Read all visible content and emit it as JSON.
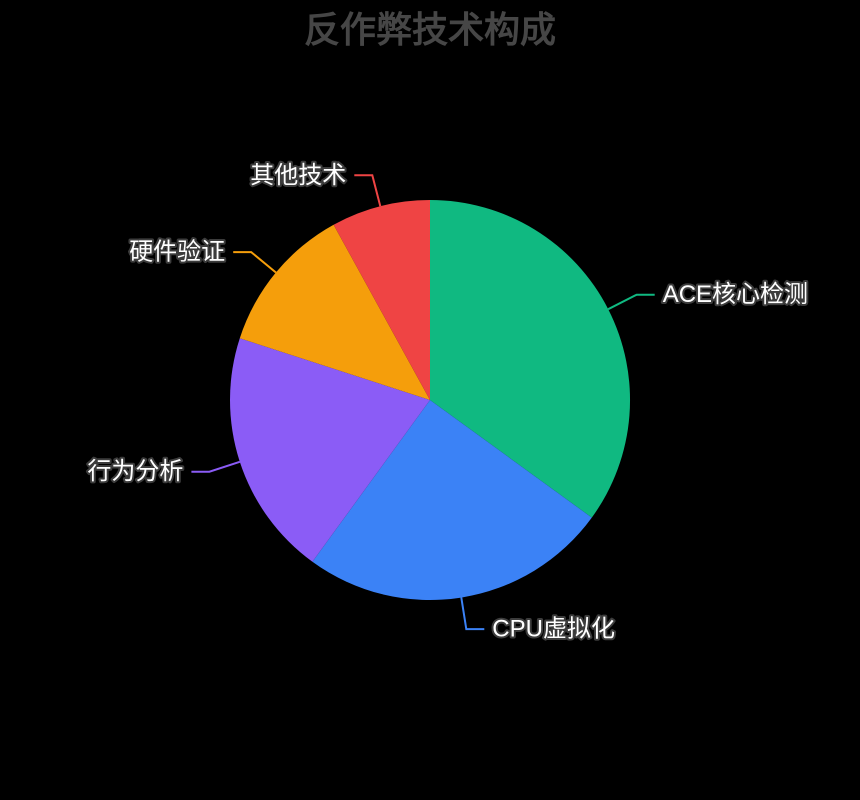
{
  "page": {
    "background_color": "#000000"
  },
  "chart_data": {
    "type": "pie",
    "title": "反作弊技术构成",
    "title_color": "#464646",
    "legend": "none",
    "grid": false,
    "label_position": "outside-with-leader-lines",
    "label_text_color": "#FFFFFF",
    "label_outline_color": "#3C3C3C",
    "start_angle_deg": 90,
    "direction": "clockwise",
    "series": [
      {
        "name": "ACE核心检测",
        "value_percent": 35,
        "color": "#10B981"
      },
      {
        "name": "CPU虚拟化",
        "value_percent": 25,
        "color": "#3B82F6"
      },
      {
        "name": "行为分析",
        "value_percent": 20,
        "color": "#8B5CF6"
      },
      {
        "name": "硬件验证",
        "value_percent": 12,
        "color": "#F59E0B"
      },
      {
        "name": "其他技术",
        "value_percent": 8,
        "color": "#EF4444"
      }
    ]
  }
}
